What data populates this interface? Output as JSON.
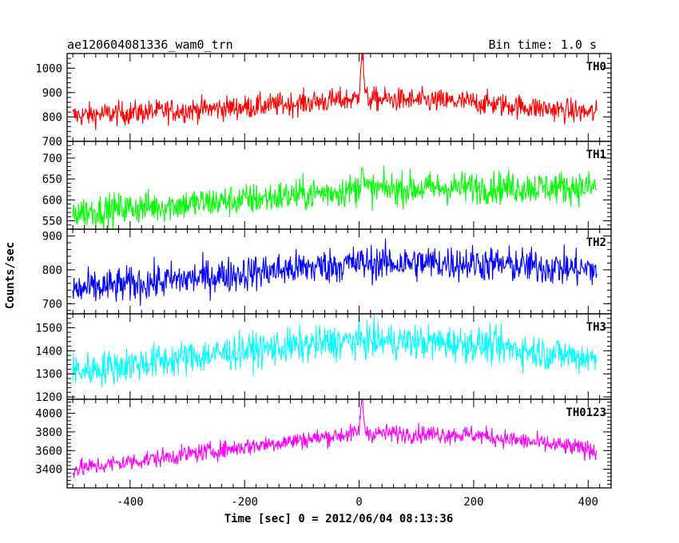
{
  "header": {
    "title": "ae120604081336_wam0_trn",
    "bin_time": "Bin time: 1.0 s"
  },
  "chart_data": {
    "type": "line",
    "shared_y_label": "Counts/sec",
    "xlabel": "Time [sec] 0 = 2012/06/04 08:13:36",
    "xlim": [
      -510,
      440
    ],
    "x_ticks": [
      -400,
      -200,
      0,
      200,
      400
    ],
    "x_start": -500,
    "x_end": 415,
    "x_step": 1,
    "panels": [
      {
        "name": "TH0",
        "color": "#ff0000",
        "ylim": [
          700,
          1060
        ],
        "y_ticks": [
          700,
          800,
          900,
          1000
        ],
        "baseline": [
          [
            -500,
            805
          ],
          [
            -200,
            840
          ],
          [
            0,
            875
          ],
          [
            200,
            860
          ],
          [
            415,
            815
          ]
        ],
        "noise": 35,
        "peak": {
          "x": 5,
          "value": 1060,
          "width": 4
        }
      },
      {
        "name": "TH1",
        "color": "#00ff00",
        "ylim": [
          530,
          740
        ],
        "y_ticks": [
          550,
          600,
          650,
          700
        ],
        "baseline": [
          [
            -500,
            570
          ],
          [
            -200,
            600
          ],
          [
            0,
            625
          ],
          [
            200,
            630
          ],
          [
            415,
            630
          ]
        ],
        "noise": 28,
        "peak": {
          "x": 5,
          "value": 690,
          "width": 3
        }
      },
      {
        "name": "TH2",
        "color": "#0000ff",
        "ylim": [
          670,
          920
        ],
        "y_ticks": [
          700,
          800,
          900
        ],
        "baseline": [
          [
            -500,
            740
          ],
          [
            -200,
            790
          ],
          [
            0,
            820
          ],
          [
            200,
            820
          ],
          [
            415,
            800
          ]
        ],
        "noise": 38,
        "peak": null
      },
      {
        "name": "TH3",
        "color": "#00ffff",
        "ylim": [
          1190,
          1560
        ],
        "y_ticks": [
          1200,
          1300,
          1400,
          1500
        ],
        "baseline": [
          [
            -500,
            1310
          ],
          [
            -200,
            1400
          ],
          [
            0,
            1445
          ],
          [
            200,
            1430
          ],
          [
            415,
            1365
          ]
        ],
        "noise": 55,
        "peak": null
      },
      {
        "name": "TH0123",
        "color": "#ff00ff",
        "ylim": [
          3200,
          4150
        ],
        "y_ticks": [
          3400,
          3600,
          3800,
          4000
        ],
        "baseline": [
          [
            -500,
            3400
          ],
          [
            -200,
            3640
          ],
          [
            0,
            3790
          ],
          [
            200,
            3770
          ],
          [
            415,
            3600
          ]
        ],
        "noise": 70,
        "peak": {
          "x": 5,
          "value": 4110,
          "width": 4
        }
      }
    ]
  }
}
